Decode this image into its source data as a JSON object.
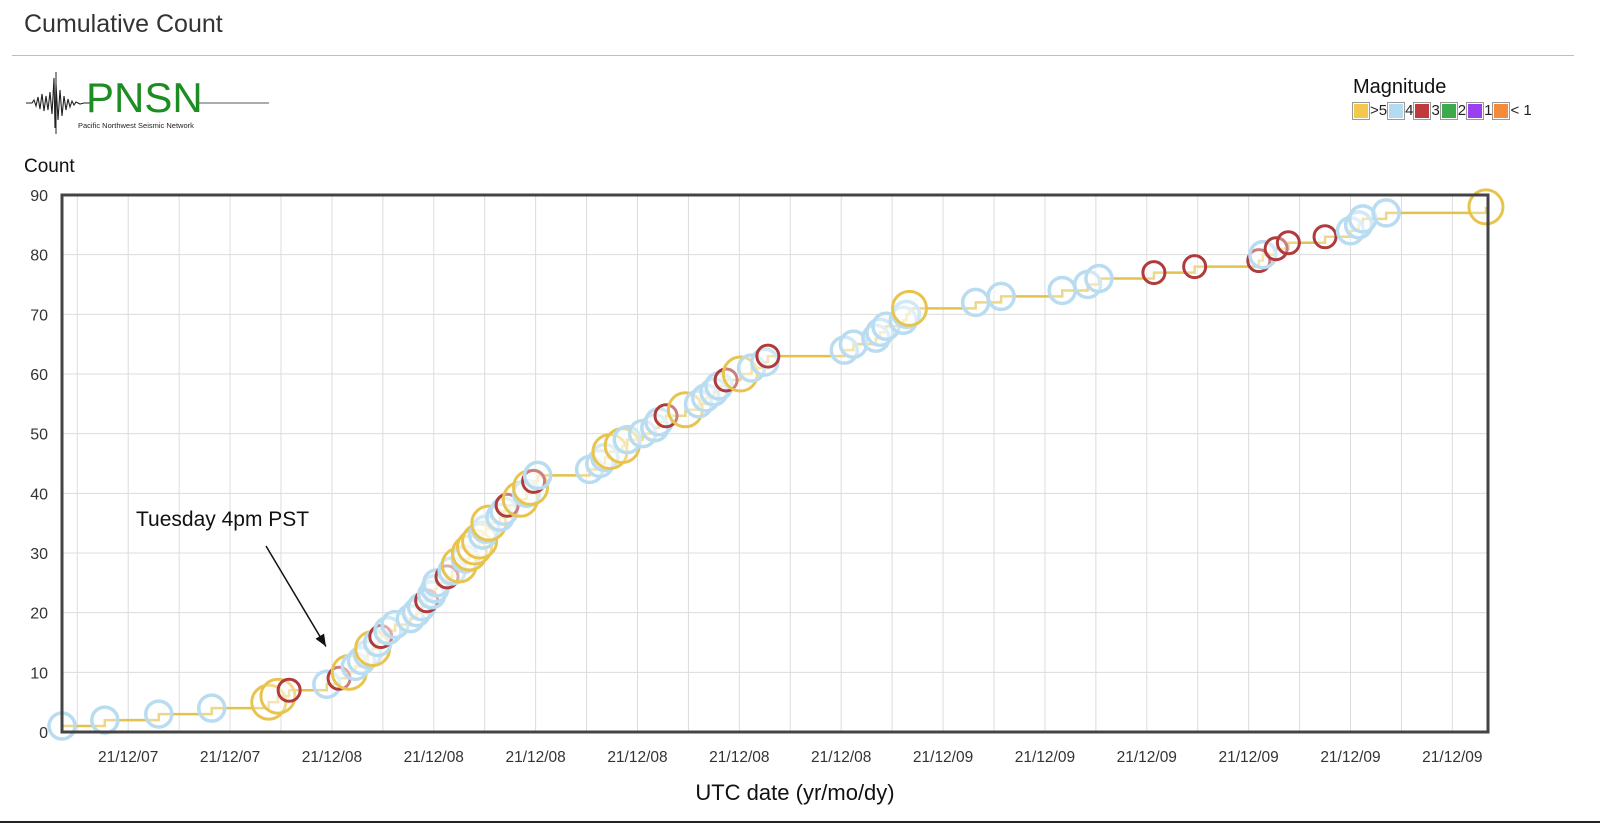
{
  "page": {
    "title": "Cumulative Count"
  },
  "logo": {
    "name": "PNSN",
    "subtitle": "Pacific Northwest Seismic Network"
  },
  "legend": {
    "title": "Magnitude",
    "items": [
      {
        "label": ">5",
        "color": "#f2c94c"
      },
      {
        "label": "4",
        "color": "#b3dcf2"
      },
      {
        "label": "3",
        "color": "#c0393b"
      },
      {
        "label": "2",
        "color": "#3caa4a"
      },
      {
        "label": "1",
        "color": "#9b3ff0"
      },
      {
        "label": "< 1",
        "color": "#f58a3a"
      }
    ]
  },
  "chart_data": {
    "type": "line",
    "ylabel": "Count",
    "xlabel": "UTC date (yr/mo/dy)",
    "ylim": [
      0,
      90
    ],
    "yticks": [
      0,
      10,
      20,
      30,
      40,
      50,
      60,
      70,
      80,
      90
    ],
    "xlim": [
      0,
      14
    ],
    "xticks": [
      {
        "pos": 0.65,
        "label": "21/12/07"
      },
      {
        "pos": 1.65,
        "label": "21/12/07"
      },
      {
        "pos": 2.65,
        "label": "21/12/08"
      },
      {
        "pos": 3.65,
        "label": "21/12/08"
      },
      {
        "pos": 4.65,
        "label": "21/12/08"
      },
      {
        "pos": 5.65,
        "label": "21/12/08"
      },
      {
        "pos": 6.65,
        "label": "21/12/08"
      },
      {
        "pos": 7.65,
        "label": "21/12/08"
      },
      {
        "pos": 8.65,
        "label": "21/12/09"
      },
      {
        "pos": 9.65,
        "label": "21/12/09"
      },
      {
        "pos": 10.65,
        "label": "21/12/09"
      },
      {
        "pos": 11.65,
        "label": "21/12/09"
      },
      {
        "pos": 12.65,
        "label": "21/12/09"
      },
      {
        "pos": 13.65,
        "label": "21/12/09"
      }
    ],
    "grid": true,
    "line_color": "#e2c24a",
    "magnitude_colors": {
      ">5": "#e8c44e",
      "4": "#b9dcf0",
      "3": "#b03a3c"
    },
    "events": [
      {
        "x": 0.0,
        "count": 1,
        "mag": "4"
      },
      {
        "x": 0.42,
        "count": 2,
        "mag": "4"
      },
      {
        "x": 0.95,
        "count": 3,
        "mag": "4"
      },
      {
        "x": 1.47,
        "count": 4,
        "mag": "4"
      },
      {
        "x": 2.03,
        "count": 5,
        "mag": ">5"
      },
      {
        "x": 2.12,
        "count": 6,
        "mag": ">5"
      },
      {
        "x": 2.23,
        "count": 7,
        "mag": "3"
      },
      {
        "x": 2.6,
        "count": 8,
        "mag": "4"
      },
      {
        "x": 2.72,
        "count": 9,
        "mag": "3"
      },
      {
        "x": 2.82,
        "count": 10,
        "mag": ">5"
      },
      {
        "x": 2.88,
        "count": 11,
        "mag": "4"
      },
      {
        "x": 2.94,
        "count": 12,
        "mag": "4"
      },
      {
        "x": 3.0,
        "count": 13,
        "mag": "4"
      },
      {
        "x": 3.05,
        "count": 14,
        "mag": ">5"
      },
      {
        "x": 3.1,
        "count": 15,
        "mag": "4"
      },
      {
        "x": 3.13,
        "count": 16,
        "mag": "3"
      },
      {
        "x": 3.2,
        "count": 17,
        "mag": "4"
      },
      {
        "x": 3.27,
        "count": 18,
        "mag": "4"
      },
      {
        "x": 3.42,
        "count": 19,
        "mag": "4"
      },
      {
        "x": 3.48,
        "count": 20,
        "mag": "4"
      },
      {
        "x": 3.53,
        "count": 21,
        "mag": "4"
      },
      {
        "x": 3.58,
        "count": 22,
        "mag": "3"
      },
      {
        "x": 3.63,
        "count": 23,
        "mag": "4"
      },
      {
        "x": 3.66,
        "count": 24,
        "mag": "4"
      },
      {
        "x": 3.68,
        "count": 25,
        "mag": "4"
      },
      {
        "x": 3.78,
        "count": 26,
        "mag": "3"
      },
      {
        "x": 3.83,
        "count": 27,
        "mag": "4"
      },
      {
        "x": 3.9,
        "count": 28,
        "mag": ">5"
      },
      {
        "x": 3.96,
        "count": 29,
        "mag": "4"
      },
      {
        "x": 4.0,
        "count": 30,
        "mag": ">5"
      },
      {
        "x": 4.05,
        "count": 31,
        "mag": ">5"
      },
      {
        "x": 4.1,
        "count": 32,
        "mag": ">5"
      },
      {
        "x": 4.13,
        "count": 33,
        "mag": "4"
      },
      {
        "x": 4.16,
        "count": 34,
        "mag": "4"
      },
      {
        "x": 4.19,
        "count": 35,
        "mag": ">5"
      },
      {
        "x": 4.3,
        "count": 36,
        "mag": "4"
      },
      {
        "x": 4.34,
        "count": 37,
        "mag": "4"
      },
      {
        "x": 4.37,
        "count": 38,
        "mag": "3"
      },
      {
        "x": 4.5,
        "count": 39,
        "mag": ">5"
      },
      {
        "x": 4.56,
        "count": 40,
        "mag": "4"
      },
      {
        "x": 4.6,
        "count": 41,
        "mag": ">5"
      },
      {
        "x": 4.63,
        "count": 42,
        "mag": "3"
      },
      {
        "x": 4.67,
        "count": 43,
        "mag": "4"
      },
      {
        "x": 5.18,
        "count": 44,
        "mag": "4"
      },
      {
        "x": 5.28,
        "count": 45,
        "mag": "4"
      },
      {
        "x": 5.33,
        "count": 46,
        "mag": "4"
      },
      {
        "x": 5.38,
        "count": 47,
        "mag": ">5"
      },
      {
        "x": 5.5,
        "count": 48,
        "mag": ">5"
      },
      {
        "x": 5.55,
        "count": 49,
        "mag": "4"
      },
      {
        "x": 5.7,
        "count": 50,
        "mag": "4"
      },
      {
        "x": 5.82,
        "count": 51,
        "mag": "4"
      },
      {
        "x": 5.86,
        "count": 52,
        "mag": "4"
      },
      {
        "x": 5.93,
        "count": 53,
        "mag": "3"
      },
      {
        "x": 6.12,
        "count": 54,
        "mag": ">5"
      },
      {
        "x": 6.25,
        "count": 55,
        "mag": "4"
      },
      {
        "x": 6.32,
        "count": 56,
        "mag": "4"
      },
      {
        "x": 6.4,
        "count": 57,
        "mag": "4"
      },
      {
        "x": 6.45,
        "count": 58,
        "mag": "4"
      },
      {
        "x": 6.52,
        "count": 59,
        "mag": "3"
      },
      {
        "x": 6.66,
        "count": 60,
        "mag": ">5"
      },
      {
        "x": 6.77,
        "count": 61,
        "mag": "4"
      },
      {
        "x": 6.9,
        "count": 62,
        "mag": "4"
      },
      {
        "x": 6.93,
        "count": 63,
        "mag": "3"
      },
      {
        "x": 7.68,
        "count": 64,
        "mag": "4"
      },
      {
        "x": 7.77,
        "count": 65,
        "mag": "4"
      },
      {
        "x": 7.99,
        "count": 66,
        "mag": "4"
      },
      {
        "x": 8.03,
        "count": 67,
        "mag": "4"
      },
      {
        "x": 8.09,
        "count": 68,
        "mag": "4"
      },
      {
        "x": 8.26,
        "count": 69,
        "mag": "4"
      },
      {
        "x": 8.29,
        "count": 70,
        "mag": "4"
      },
      {
        "x": 8.32,
        "count": 71,
        "mag": ">5"
      },
      {
        "x": 8.97,
        "count": 72,
        "mag": "4"
      },
      {
        "x": 9.22,
        "count": 73,
        "mag": "4"
      },
      {
        "x": 9.82,
        "count": 74,
        "mag": "4"
      },
      {
        "x": 10.07,
        "count": 75,
        "mag": "4"
      },
      {
        "x": 10.18,
        "count": 76,
        "mag": "4"
      },
      {
        "x": 10.72,
        "count": 77,
        "mag": "3"
      },
      {
        "x": 11.12,
        "count": 78,
        "mag": "3"
      },
      {
        "x": 11.75,
        "count": 79,
        "mag": "3"
      },
      {
        "x": 11.79,
        "count": 80,
        "mag": "4"
      },
      {
        "x": 11.92,
        "count": 81,
        "mag": "3"
      },
      {
        "x": 12.04,
        "count": 82,
        "mag": "3"
      },
      {
        "x": 12.4,
        "count": 83,
        "mag": "3"
      },
      {
        "x": 12.65,
        "count": 84,
        "mag": "4"
      },
      {
        "x": 12.73,
        "count": 85,
        "mag": "4"
      },
      {
        "x": 12.77,
        "count": 86,
        "mag": "4"
      },
      {
        "x": 13.0,
        "count": 87,
        "mag": "4"
      },
      {
        "x": 13.98,
        "count": 88,
        "mag": ">5"
      }
    ],
    "annotation": {
      "text": "Tuesday 4pm PST",
      "arrow_to": {
        "x": 2.65,
        "count": 13
      }
    }
  }
}
